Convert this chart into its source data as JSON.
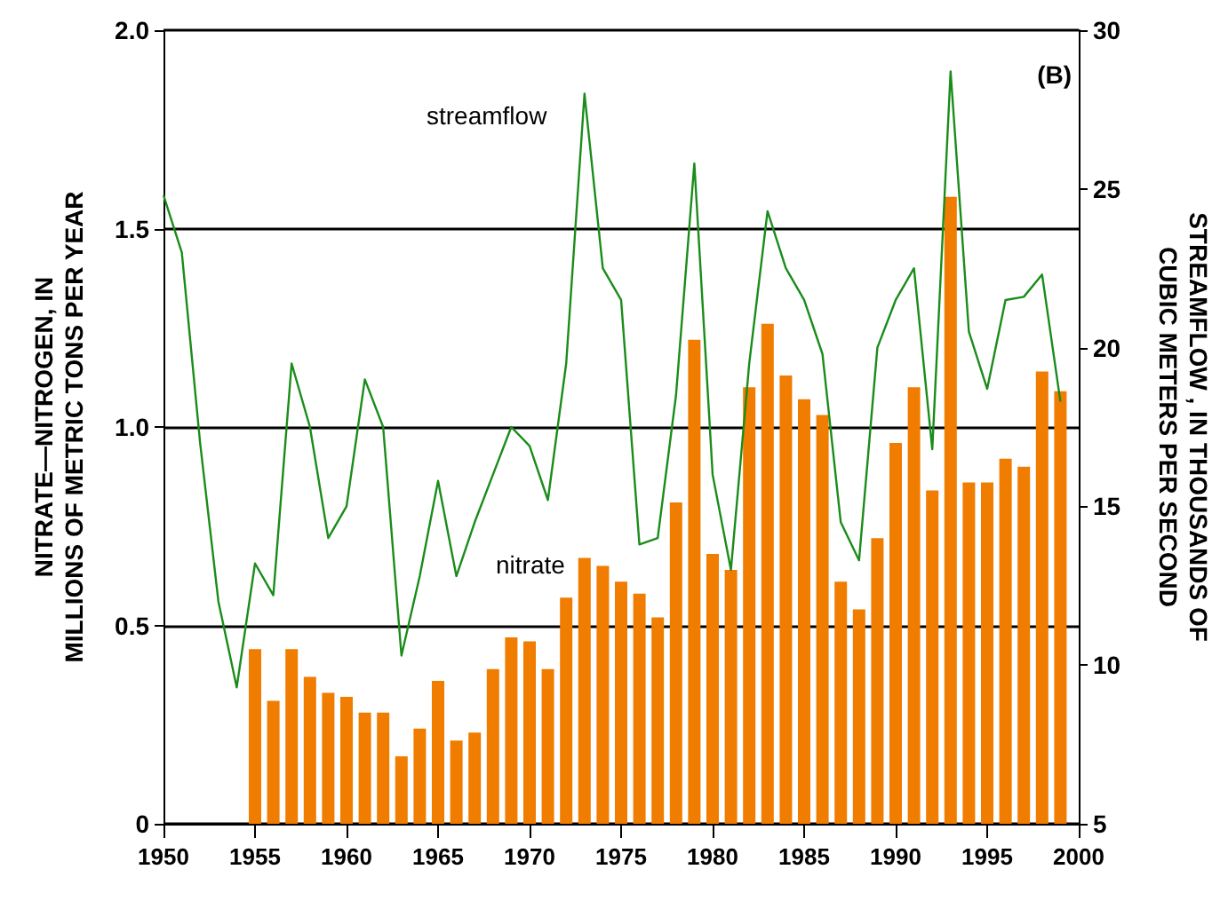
{
  "chart_data": {
    "type": "bar",
    "ylabel": "NITRATE—NITROGEN, IN\nMILLIONS OF METRIC TONS PER YEAR",
    "y2label": "STREAMFLOW , IN THOUSANDS OF\nCUBIC METERS PER SECOND",
    "annotations": [
      "(B)"
    ],
    "xlim": [
      1950,
      2000
    ],
    "xticks": [
      1950,
      1955,
      1960,
      1965,
      1970,
      1975,
      1980,
      1985,
      1990,
      1995,
      2000
    ],
    "ylim": [
      0,
      2
    ],
    "yticks": [
      0,
      {
        "value": 0.5,
        "label": "0.5"
      },
      {
        "value": 1,
        "label": "1.0"
      },
      1.5,
      {
        "value": 2,
        "label": "2.0"
      }
    ],
    "y2lim": [
      5,
      30
    ],
    "y2ticks": [
      5,
      10,
      15,
      20,
      25,
      30
    ],
    "grid": "y",
    "legend": false,
    "series": [
      {
        "name": "nitrate",
        "color": "#f07c00",
        "x": [
          1955,
          1956,
          1957,
          1958,
          1959,
          1960,
          1961,
          1962,
          1963,
          1964,
          1965,
          1966,
          1967,
          1968,
          1969,
          1970,
          1971,
          1972,
          1973,
          1974,
          1975,
          1976,
          1977,
          1978,
          1979,
          1980,
          1981,
          1982,
          1983,
          1984,
          1985,
          1986,
          1987,
          1988,
          1989,
          1990,
          1991,
          1992,
          1993,
          1994,
          1995,
          1996,
          1997,
          1998,
          1999
        ],
        "values": [
          0.44,
          0.31,
          0.44,
          0.37,
          0.33,
          0.32,
          0.28,
          0.28,
          0.17,
          0.24,
          0.36,
          0.21,
          0.23,
          0.39,
          0.47,
          0.46,
          0.39,
          0.57,
          0.67,
          0.65,
          0.61,
          0.58,
          0.52,
          0.81,
          1.22,
          0.68,
          0.64,
          1.1,
          1.26,
          1.13,
          1.07,
          1.03,
          0.61,
          0.54,
          0.72,
          0.96,
          1.1,
          0.84,
          1.58,
          0.86,
          0.86,
          0.92,
          0.9,
          1.14,
          1.09
        ]
      },
      {
        "name": "streamflow",
        "type": "line",
        "axis": "y2",
        "color": "#1a8c1a",
        "marker": "none",
        "x": [
          1950,
          1951,
          1952,
          1953,
          1954,
          1955,
          1956,
          1957,
          1958,
          1959,
          1960,
          1961,
          1962,
          1963,
          1964,
          1965,
          1966,
          1967,
          1968,
          1969,
          1970,
          1971,
          1972,
          1973,
          1974,
          1975,
          1976,
          1977,
          1978,
          1979,
          1980,
          1981,
          1982,
          1983,
          1984,
          1985,
          1986,
          1987,
          1988,
          1989,
          1990,
          1991,
          1992,
          1993,
          1994,
          1995,
          1996,
          1997,
          1998,
          1999
        ],
        "values": [
          24.8,
          23.0,
          17.0,
          12.0,
          9.3,
          13.2,
          12.2,
          19.5,
          17.5,
          14.0,
          15.0,
          19.0,
          17.5,
          10.3,
          12.8,
          15.8,
          12.8,
          14.5,
          16.0,
          17.5,
          16.9,
          15.2,
          19.5,
          28.0,
          22.5,
          21.5,
          13.8,
          14.0,
          18.5,
          25.8,
          16.0,
          13.0,
          19.5,
          24.3,
          22.5,
          21.5,
          19.8,
          14.5,
          13.3,
          20.0,
          21.5,
          22.5,
          16.8,
          28.7,
          20.5,
          18.7,
          21.5,
          21.6,
          22.3,
          18.3
        ]
      }
    ]
  }
}
